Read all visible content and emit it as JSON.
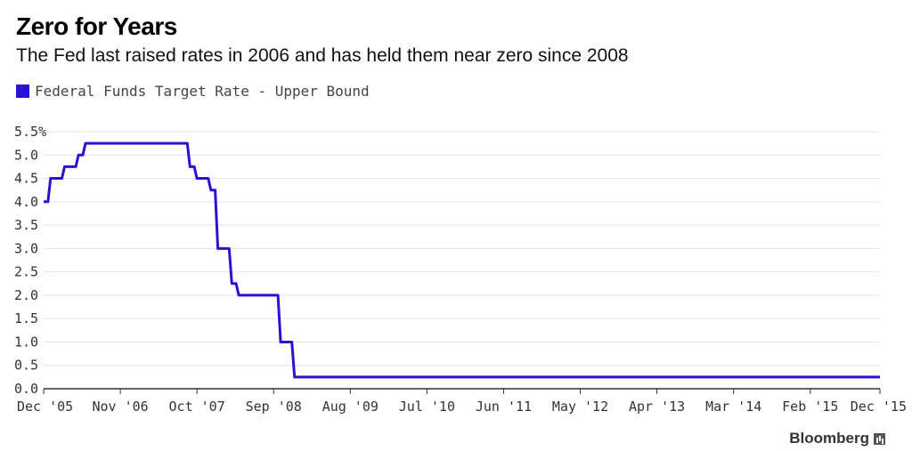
{
  "header": {
    "title": "Zero for Years",
    "subtitle": "The Fed last raised rates in 2006 and has held them near zero since 2008"
  },
  "brand": {
    "name": "Bloomberg"
  },
  "chart_data": {
    "type": "line",
    "title": "Zero for Years",
    "subtitle": "The Fed last raised rates in 2006 and has held them near zero since 2008",
    "xlabel": "",
    "ylabel": "",
    "ylim": [
      0,
      5.5
    ],
    "xlim": [
      "2005-12",
      "2015-12"
    ],
    "grid": true,
    "legend_position": "top-left",
    "y_ticks": [
      "0.0",
      "0.5",
      "1.0",
      "1.5",
      "2.0",
      "2.5",
      "3.0",
      "3.5",
      "4.0",
      "4.5",
      "5.0",
      "5.5%"
    ],
    "x_tick_positions": [
      "2005-12",
      "2006-11",
      "2007-10",
      "2008-09",
      "2009-08",
      "2010-07",
      "2011-06",
      "2012-05",
      "2013-04",
      "2014-03",
      "2015-02",
      "2015-12"
    ],
    "x_ticks": [
      "Dec '05",
      "Nov '06",
      "Oct '07",
      "Sep '08",
      "Aug '09",
      "Jul '10",
      "Jun '11",
      "May '12",
      "Apr '13",
      "Mar '14",
      "Feb '15",
      "Dec '15"
    ],
    "series": [
      {
        "name": "Federal Funds Target Rate - Upper Bound",
        "color": "#2a12d4",
        "step": true,
        "x": [
          "2005-12",
          "2006-01",
          "2006-03",
          "2006-05",
          "2006-06",
          "2007-09",
          "2007-10",
          "2007-12",
          "2008-01",
          "2008-03",
          "2008-04",
          "2008-10",
          "2008-12",
          "2015-12"
        ],
        "y": [
          4.0,
          4.5,
          4.75,
          5.0,
          5.25,
          4.75,
          4.5,
          4.25,
          3.0,
          2.25,
          2.0,
          1.0,
          0.25,
          0.25
        ]
      }
    ]
  }
}
